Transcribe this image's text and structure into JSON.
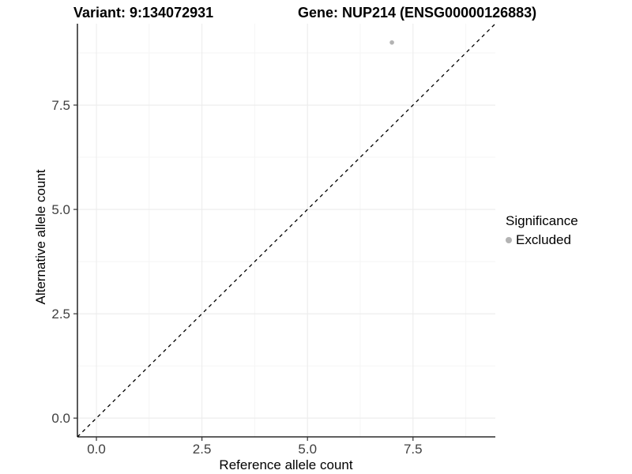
{
  "titles": {
    "variant": "Variant: 9:134072931",
    "gene": "Gene: NUP214 (ENSG00000126883)"
  },
  "axes": {
    "x_label": "Reference allele count",
    "y_label": "Alternative allele count",
    "x_tick_labels": [
      "0.0",
      "2.5",
      "5.0",
      "7.5"
    ],
    "y_tick_labels": [
      "0.0",
      "2.5",
      "5.0",
      "7.5"
    ]
  },
  "legend": {
    "title": "Significance",
    "items": [
      {
        "label": "Excluded",
        "color": "#b3b3b3"
      }
    ]
  },
  "chart_data": {
    "type": "scatter",
    "title": "Variant: 9:134072931   Gene: NUP214 (ENSG00000126883)",
    "xlabel": "Reference allele count",
    "ylabel": "Alternative allele count",
    "xlim": [
      -0.45,
      9.45
    ],
    "ylim": [
      -0.45,
      9.45
    ],
    "x_tick_values": [
      0,
      2.5,
      5,
      7.5
    ],
    "y_tick_values": [
      0,
      2.5,
      5,
      7.5
    ],
    "minor_tick_values": [
      1.25,
      3.75,
      6.25,
      8.75
    ],
    "grid": true,
    "legend_position": "right",
    "series": [
      {
        "name": "Excluded",
        "points": [
          {
            "x": 7,
            "y": 9
          }
        ],
        "color": "#b3b3b3"
      }
    ],
    "reference_line": {
      "kind": "identity y=x",
      "style": "dashed",
      "color": "#000000"
    },
    "colors": {
      "major_grid": "#ececec",
      "minor_grid": "#f5f5f5",
      "axis_line": "#000000",
      "tick_mark": "#333333",
      "tick_text": "#404040",
      "point": "#b3b3b3"
    }
  }
}
